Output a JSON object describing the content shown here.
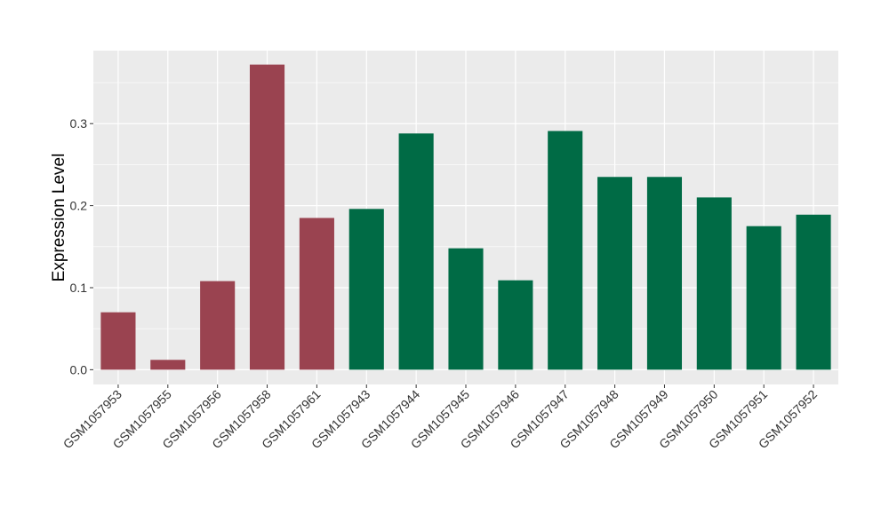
{
  "chart_data": {
    "type": "bar",
    "title": "",
    "xlabel": "",
    "ylabel": "Expression Level",
    "ylim": [
      -0.018,
      0.389
    ],
    "yticks": [
      0.0,
      0.1,
      0.2,
      0.3
    ],
    "ytick_labels": [
      "0.0",
      "0.1",
      "0.2",
      "0.3"
    ],
    "grid": true,
    "legend": "none",
    "background_color": "#ebebeb",
    "grid_color": "#ffffff",
    "categories": [
      "GSM1057953",
      "GSM1057955",
      "GSM1057956",
      "GSM1057958",
      "GSM1057961",
      "GSM1057943",
      "GSM1057944",
      "GSM1057945",
      "GSM1057946",
      "GSM1057947",
      "GSM1057948",
      "GSM1057949",
      "GSM1057950",
      "GSM1057951",
      "GSM1057952"
    ],
    "values": [
      0.07,
      0.012,
      0.108,
      0.372,
      0.185,
      0.196,
      0.288,
      0.148,
      0.109,
      0.291,
      0.235,
      0.235,
      0.21,
      0.175,
      0.189
    ],
    "colors": [
      "#9a4350",
      "#9a4350",
      "#9a4350",
      "#9a4350",
      "#9a4350",
      "#006b45",
      "#006b45",
      "#006b45",
      "#006b45",
      "#006b45",
      "#006b45",
      "#006b45",
      "#006b45",
      "#006b45",
      "#006b45"
    ]
  }
}
